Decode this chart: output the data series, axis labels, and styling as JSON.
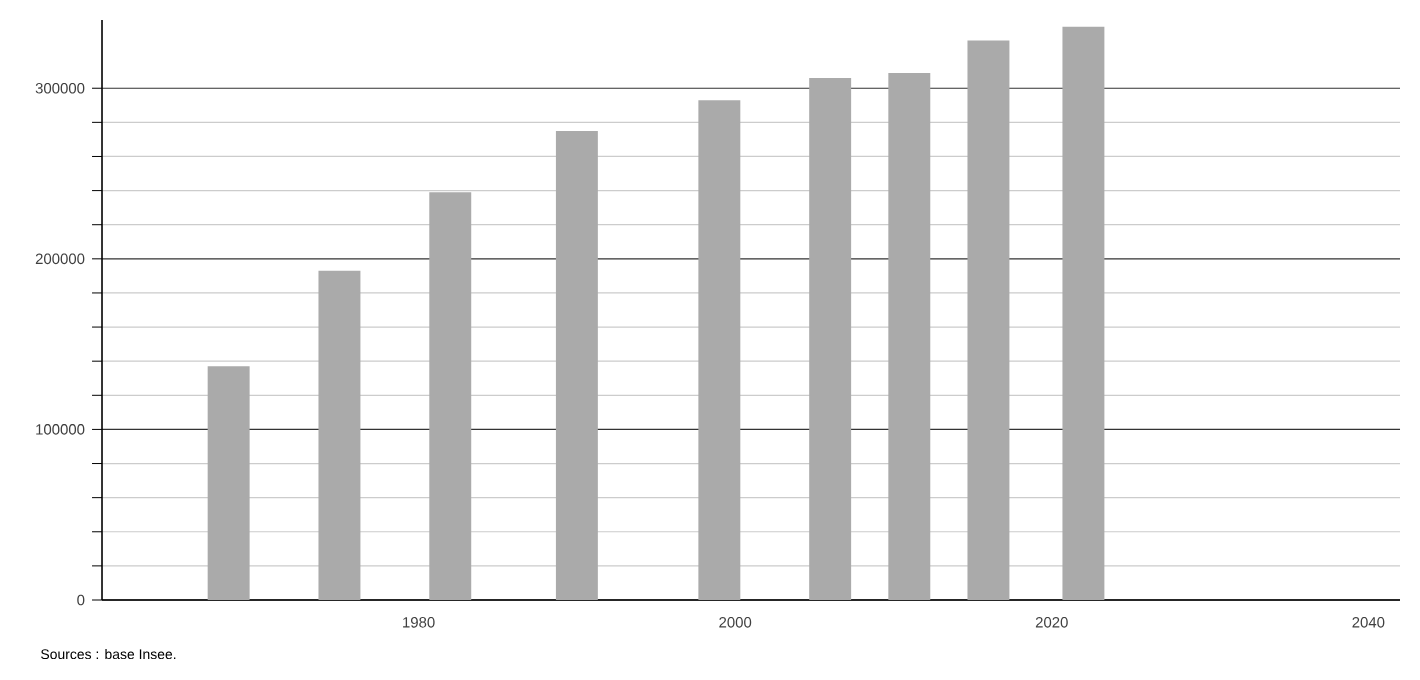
{
  "chart_data": {
    "type": "bar",
    "x": [
      1968,
      1975,
      1982,
      1990,
      1999,
      2006,
      2011,
      2016,
      2022
    ],
    "values": [
      137000,
      193000,
      239000,
      275000,
      293000,
      306000,
      309000,
      328000,
      336000
    ],
    "color": "#aaaaaa",
    "xlim": [
      1960,
      2042
    ],
    "xticks": [
      1980,
      2000,
      2020,
      2040
    ],
    "ylim": [
      0,
      340000
    ],
    "yticks": [
      0,
      100000,
      200000,
      300000
    ],
    "grid": "y",
    "annotations": [
      "Sources : base Insee."
    ]
  }
}
